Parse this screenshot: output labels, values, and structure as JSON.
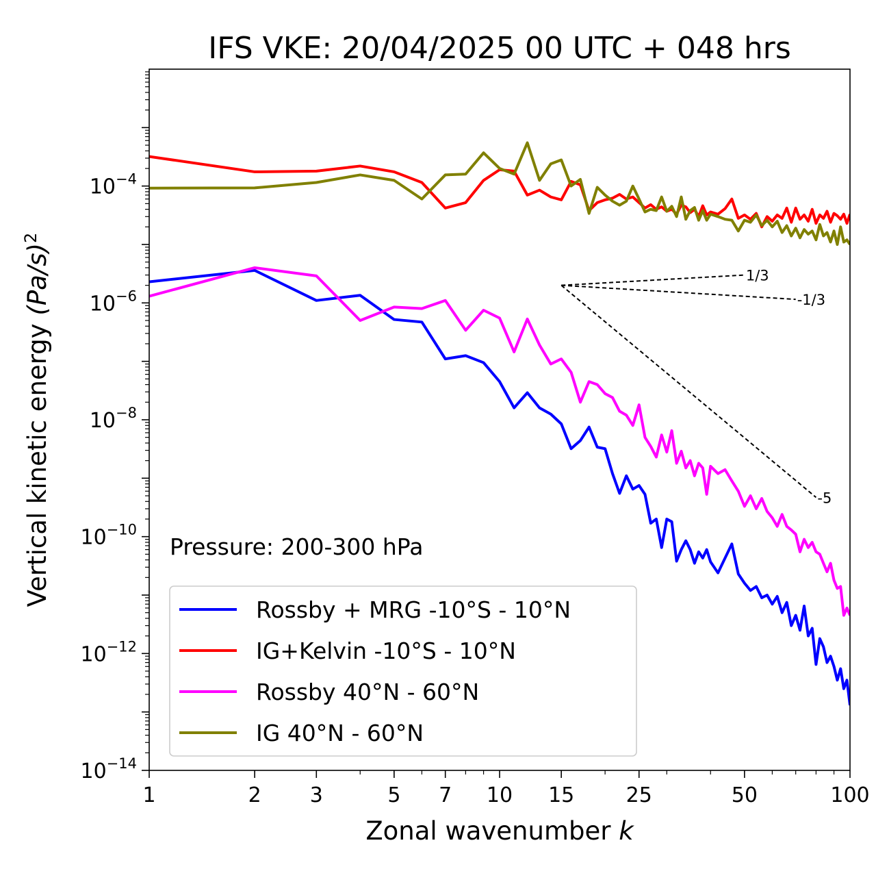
{
  "chart_data": {
    "type": "line",
    "title": "IFS VKE: 20/04/2025 00 UTC + 048 hrs",
    "xlabel": "Zonal wavenumber",
    "xlabel_var": "k",
    "ylabel": "Vertical kinetic energy",
    "ylabel_unit": "(Pa/s)",
    "ylabel_exp": "2",
    "x_scale": "log",
    "y_scale": "log",
    "xlim": [
      1,
      100
    ],
    "ylim": [
      1e-14,
      0.01
    ],
    "x_ticks": [
      {
        "value": 1,
        "label": "1"
      },
      {
        "value": 2,
        "label": "2"
      },
      {
        "value": 3,
        "label": "3"
      },
      {
        "value": 5,
        "label": "5"
      },
      {
        "value": 7,
        "label": "7"
      },
      {
        "value": 10,
        "label": "10"
      },
      {
        "value": 15,
        "label": "15"
      },
      {
        "value": 25,
        "label": "25"
      },
      {
        "value": 50,
        "label": "50"
      },
      {
        "value": 100,
        "label": "100"
      }
    ],
    "y_ticks": [
      {
        "value": 1e-14,
        "base": "10",
        "exp": "−14"
      },
      {
        "value": 1e-12,
        "base": "10",
        "exp": "−12"
      },
      {
        "value": 1e-10,
        "base": "10",
        "exp": "−10"
      },
      {
        "value": 1e-08,
        "base": "10",
        "exp": "−8"
      },
      {
        "value": 1e-06,
        "base": "10",
        "exp": "−6"
      },
      {
        "value": 0.0001,
        "base": "10",
        "exp": "−4"
      }
    ],
    "annotation": "Pressure: 200-300 hPa",
    "grid": false,
    "legend_position": "lower-left",
    "series": [
      {
        "name": "Rossby + MRG -10°S - 10°N",
        "color": "#0000ff",
        "points": [
          [
            1,
            2.3e-06
          ],
          [
            2,
            3.6e-06
          ],
          [
            3,
            1.1e-06
          ],
          [
            4,
            1.35e-06
          ],
          [
            5,
            5.2e-07
          ],
          [
            6,
            4.7e-07
          ],
          [
            7,
            1.1e-07
          ],
          [
            8,
            1.25e-07
          ],
          [
            9,
            9.5e-08
          ],
          [
            10,
            4.5e-08
          ],
          [
            11,
            1.6e-08
          ],
          [
            12,
            2.9e-08
          ],
          [
            13,
            1.6e-08
          ],
          [
            14,
            1.25e-08
          ],
          [
            15,
            8.5e-09
          ],
          [
            16,
            3.2e-09
          ],
          [
            17,
            4.4e-09
          ],
          [
            18,
            7.5e-09
          ],
          [
            19,
            3.4e-09
          ],
          [
            20,
            3.2e-09
          ],
          [
            21,
            1.2e-09
          ],
          [
            22,
            5.5e-10
          ],
          [
            23,
            1.1e-09
          ],
          [
            24,
            6.5e-10
          ],
          [
            25,
            7.5e-10
          ],
          [
            26,
            5.3e-10
          ],
          [
            27,
            1.7e-10
          ],
          [
            28,
            2e-10
          ],
          [
            29,
            6.5e-11
          ],
          [
            30,
            2e-10
          ],
          [
            31,
            1.8e-10
          ],
          [
            32,
            3.8e-11
          ],
          [
            33,
            6e-11
          ],
          [
            34,
            8.5e-11
          ],
          [
            35,
            6e-11
          ],
          [
            36,
            3.5e-11
          ],
          [
            37,
            5.5e-11
          ],
          [
            38,
            4.3e-11
          ],
          [
            39,
            6e-11
          ],
          [
            40,
            3.7e-11
          ],
          [
            42,
            2.4e-11
          ],
          [
            44,
            4.3e-11
          ],
          [
            46,
            7.5e-11
          ],
          [
            48,
            2.3e-11
          ],
          [
            50,
            1.6e-11
          ],
          [
            52,
            1.2e-11
          ],
          [
            54,
            1.4e-11
          ],
          [
            56,
            9e-12
          ],
          [
            58,
            1e-11
          ],
          [
            60,
            7e-12
          ],
          [
            62,
            9.5e-12
          ],
          [
            64,
            5e-12
          ],
          [
            66,
            7.5e-12
          ],
          [
            68,
            3e-12
          ],
          [
            70,
            4.5e-12
          ],
          [
            72,
            2.5e-12
          ],
          [
            74,
            6.5e-12
          ],
          [
            76,
            2e-12
          ],
          [
            78,
            2.7e-12
          ],
          [
            80,
            6.5e-13
          ],
          [
            82,
            1.8e-12
          ],
          [
            84,
            1.3e-12
          ],
          [
            86,
            7e-13
          ],
          [
            88,
            9e-13
          ],
          [
            90,
            6e-13
          ],
          [
            92,
            3.5e-13
          ],
          [
            94,
            5.5e-13
          ],
          [
            96,
            2.5e-13
          ],
          [
            98,
            3.5e-13
          ],
          [
            100,
            1.3e-13
          ]
        ]
      },
      {
        "name": "IG+Kelvin -10°S - 10°N",
        "color": "#ff0000",
        "points": [
          [
            1,
            0.00032
          ],
          [
            2,
            0.000175
          ],
          [
            3,
            0.00018
          ],
          [
            4,
            0.00022
          ],
          [
            5,
            0.000175
          ],
          [
            6,
            0.000115
          ],
          [
            7,
            4.2e-05
          ],
          [
            8,
            5.2e-05
          ],
          [
            9,
            0.000125
          ],
          [
            10,
            0.00019
          ],
          [
            11,
            0.00018
          ],
          [
            12,
            7e-05
          ],
          [
            13,
            8.5e-05
          ],
          [
            14,
            6.5e-05
          ],
          [
            15,
            5.8e-05
          ],
          [
            16,
            0.00012
          ],
          [
            17,
            0.000105
          ],
          [
            18,
            3.8e-05
          ],
          [
            19,
            5.2e-05
          ],
          [
            20,
            5.8e-05
          ],
          [
            21,
            6.2e-05
          ],
          [
            22,
            7.2e-05
          ],
          [
            23,
            6e-05
          ],
          [
            24,
            6.5e-05
          ],
          [
            25,
            5.2e-05
          ],
          [
            26,
            4.2e-05
          ],
          [
            27,
            4.8e-05
          ],
          [
            28,
            4e-05
          ],
          [
            29,
            4.4e-05
          ],
          [
            30,
            3.7e-05
          ],
          [
            31,
            4e-05
          ],
          [
            32,
            3.3e-05
          ],
          [
            33,
            4.7e-05
          ],
          [
            34,
            4.4e-05
          ],
          [
            35,
            3.5e-05
          ],
          [
            36,
            4e-05
          ],
          [
            37,
            3e-05
          ],
          [
            38,
            4.6e-05
          ],
          [
            39,
            3.2e-05
          ],
          [
            40,
            3.6e-05
          ],
          [
            42,
            3.3e-05
          ],
          [
            44,
            4.1e-05
          ],
          [
            46,
            6e-05
          ],
          [
            48,
            2.8e-05
          ],
          [
            50,
            3.2e-05
          ],
          [
            52,
            2.7e-05
          ],
          [
            54,
            3.4e-05
          ],
          [
            56,
            2e-05
          ],
          [
            58,
            3e-05
          ],
          [
            60,
            2.5e-05
          ],
          [
            62,
            3.2e-05
          ],
          [
            64,
            2.8e-05
          ],
          [
            66,
            4.2e-05
          ],
          [
            68,
            2.4e-05
          ],
          [
            70,
            4.2e-05
          ],
          [
            72,
            2.7e-05
          ],
          [
            74,
            3.2e-05
          ],
          [
            76,
            2.5e-05
          ],
          [
            78,
            4e-05
          ],
          [
            80,
            2.3e-05
          ],
          [
            82,
            3.2e-05
          ],
          [
            84,
            2.8e-05
          ],
          [
            86,
            3.7e-05
          ],
          [
            88,
            2.4e-05
          ],
          [
            90,
            3.4e-05
          ],
          [
            92,
            3.1e-05
          ],
          [
            94,
            2.7e-05
          ],
          [
            96,
            3.3e-05
          ],
          [
            98,
            2.3e-05
          ],
          [
            100,
            3.3e-05
          ]
        ]
      },
      {
        "name": "Rossby 40°N - 60°N",
        "color": "#ff00ff",
        "points": [
          [
            1,
            1.3e-06
          ],
          [
            2,
            4e-06
          ],
          [
            3,
            2.9e-06
          ],
          [
            4,
            5e-07
          ],
          [
            5,
            8.5e-07
          ],
          [
            6,
            8e-07
          ],
          [
            7,
            1.1e-06
          ],
          [
            8,
            3.4e-07
          ],
          [
            9,
            7.5e-07
          ],
          [
            10,
            5.5e-07
          ],
          [
            11,
            1.45e-07
          ],
          [
            12,
            5.3e-07
          ],
          [
            13,
            1.9e-07
          ],
          [
            14,
            9e-08
          ],
          [
            15,
            1.1e-07
          ],
          [
            16,
            6.5e-08
          ],
          [
            17,
            2e-08
          ],
          [
            18,
            4.5e-08
          ],
          [
            19,
            4e-08
          ],
          [
            20,
            2.8e-08
          ],
          [
            21,
            2.4e-08
          ],
          [
            22,
            1.4e-08
          ],
          [
            23,
            1.2e-08
          ],
          [
            24,
            8e-09
          ],
          [
            25,
            1.8e-08
          ],
          [
            26,
            5e-09
          ],
          [
            27,
            3.5e-09
          ],
          [
            28,
            2.3e-09
          ],
          [
            29,
            5.5e-09
          ],
          [
            30,
            2.8e-09
          ],
          [
            31,
            6.5e-09
          ],
          [
            32,
            1.8e-09
          ],
          [
            33,
            2.9e-09
          ],
          [
            34,
            1.5e-09
          ],
          [
            35,
            2e-09
          ],
          [
            36,
            1.1e-09
          ],
          [
            37,
            1.8e-09
          ],
          [
            38,
            1.5e-09
          ],
          [
            39,
            5.3e-10
          ],
          [
            40,
            1.6e-09
          ],
          [
            42,
            1.2e-09
          ],
          [
            44,
            1.4e-09
          ],
          [
            46,
            9e-10
          ],
          [
            48,
            6e-10
          ],
          [
            50,
            3.3e-10
          ],
          [
            52,
            5e-10
          ],
          [
            54,
            3e-10
          ],
          [
            56,
            4.5e-10
          ],
          [
            58,
            2.7e-10
          ],
          [
            60,
            2.1e-10
          ],
          [
            62,
            1.5e-10
          ],
          [
            64,
            2.4e-10
          ],
          [
            66,
            1.5e-10
          ],
          [
            68,
            1.3e-10
          ],
          [
            70,
            1.1e-10
          ],
          [
            72,
            5.5e-11
          ],
          [
            74,
            9e-11
          ],
          [
            76,
            6.5e-11
          ],
          [
            78,
            8e-11
          ],
          [
            80,
            5.5e-11
          ],
          [
            82,
            5e-11
          ],
          [
            84,
            3.5e-11
          ],
          [
            86,
            2.5e-11
          ],
          [
            88,
            3.5e-11
          ],
          [
            90,
            1.8e-11
          ],
          [
            92,
            1.3e-11
          ],
          [
            94,
            1.4e-11
          ],
          [
            96,
            4.5e-12
          ],
          [
            98,
            6e-12
          ],
          [
            100,
            4.5e-12
          ]
        ]
      },
      {
        "name": "IG 40°N - 60°N",
        "color": "#808000",
        "points": [
          [
            1,
            9.2e-05
          ],
          [
            2,
            9.3e-05
          ],
          [
            3,
            0.000115
          ],
          [
            4,
            0.000155
          ],
          [
            5,
            0.000125
          ],
          [
            6,
            6e-05
          ],
          [
            7,
            0.000155
          ],
          [
            8,
            0.00016
          ],
          [
            9,
            0.00037
          ],
          [
            10,
            0.0002
          ],
          [
            11,
            0.00016
          ],
          [
            12,
            0.00055
          ],
          [
            13,
            0.000125
          ],
          [
            14,
            0.00024
          ],
          [
            15,
            0.00028
          ],
          [
            16,
            0.0001
          ],
          [
            17,
            0.00013
          ],
          [
            18,
            3.4e-05
          ],
          [
            19,
            9.5e-05
          ],
          [
            20,
            7e-05
          ],
          [
            21,
            5.5e-05
          ],
          [
            22,
            4.7e-05
          ],
          [
            23,
            5.5e-05
          ],
          [
            24,
            0.0001
          ],
          [
            25,
            6e-05
          ],
          [
            26,
            3.6e-05
          ],
          [
            27,
            4e-05
          ],
          [
            28,
            3.8e-05
          ],
          [
            29,
            6.5e-05
          ],
          [
            30,
            3.7e-05
          ],
          [
            31,
            4.5e-05
          ],
          [
            32,
            3e-05
          ],
          [
            33,
            6.5e-05
          ],
          [
            34,
            2.7e-05
          ],
          [
            35,
            3.8e-05
          ],
          [
            36,
            4.3e-05
          ],
          [
            37,
            2.6e-05
          ],
          [
            38,
            3.8e-05
          ],
          [
            39,
            2.6e-05
          ],
          [
            40,
            3.3e-05
          ],
          [
            42,
            3e-05
          ],
          [
            44,
            2.7e-05
          ],
          [
            46,
            2.6e-05
          ],
          [
            48,
            1.7e-05
          ],
          [
            50,
            2.6e-05
          ],
          [
            52,
            2.4e-05
          ],
          [
            54,
            3.2e-05
          ],
          [
            56,
            2.1e-05
          ],
          [
            58,
            2.6e-05
          ],
          [
            60,
            2e-05
          ],
          [
            62,
            2.5e-05
          ],
          [
            64,
            1.6e-05
          ],
          [
            66,
            2.1e-05
          ],
          [
            68,
            1.4e-05
          ],
          [
            70,
            1.9e-05
          ],
          [
            72,
            1.3e-05
          ],
          [
            74,
            1.8e-05
          ],
          [
            76,
            1.5e-05
          ],
          [
            78,
            1.7e-05
          ],
          [
            80,
            1.2e-05
          ],
          [
            82,
            2.2e-05
          ],
          [
            84,
            1.4e-05
          ],
          [
            86,
            1.6e-05
          ],
          [
            88,
            1.1e-05
          ],
          [
            90,
            1.7e-05
          ],
          [
            92,
            1e-05
          ],
          [
            94,
            2e-05
          ],
          [
            96,
            1.1e-05
          ],
          [
            98,
            1.2e-05
          ],
          [
            100,
            1e-05
          ]
        ]
      }
    ],
    "reference_slopes": [
      {
        "label": "1/3",
        "from": [
          15,
          2e-06
        ],
        "to": [
          50,
          3e-06
        ]
      },
      {
        "label": "-1/3",
        "from": [
          15,
          2e-06
        ],
        "to": [
          70,
          1.15e-06
        ]
      },
      {
        "label": "-5",
        "from": [
          15,
          2e-06
        ],
        "to": [
          80,
          4.7e-10
        ]
      }
    ]
  }
}
